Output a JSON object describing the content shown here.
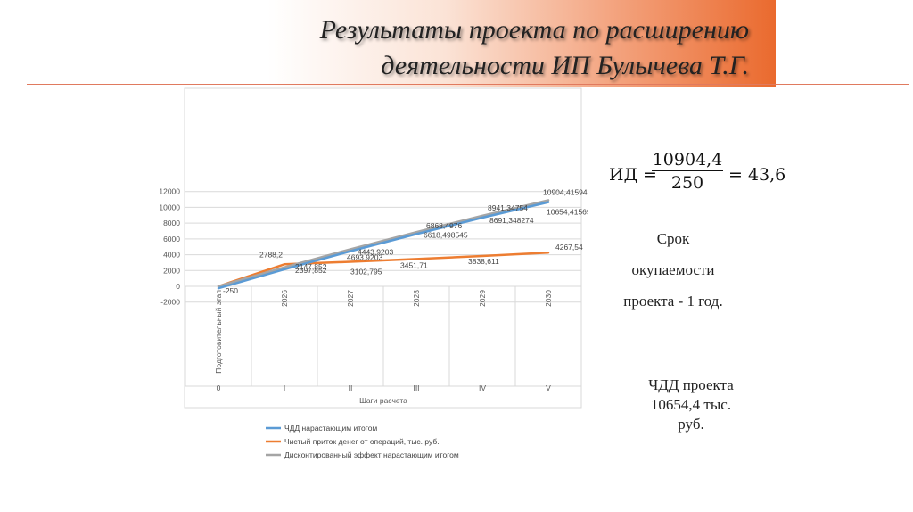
{
  "slide": {
    "title_line1": "Результаты проекта по расширению",
    "title_line2": "деятельности ИП Булычева Т.Г.",
    "accent_color": "#ea6a2e"
  },
  "formula": {
    "lhs": "ИД =",
    "numerator": "10904,4",
    "denominator": "250",
    "rhs": "= 43,6"
  },
  "payback": {
    "line1": "Срок",
    "line2": "окупаемости",
    "line3": "проекта - 1 год."
  },
  "npv": {
    "line1": "ЧДД проекта",
    "line2": "10654,4 тыс.",
    "line3": "руб."
  },
  "chart_data": {
    "type": "line",
    "categories": [
      "Подготовительный этап",
      "2026",
      "2027",
      "2028",
      "2029",
      "2030"
    ],
    "step_labels": [
      "0",
      "I",
      "II",
      "III",
      "IV",
      "V"
    ],
    "xlabel": "Шаги расчета",
    "ylabel": "",
    "ylim": [
      -2000,
      12000
    ],
    "yticks": [
      -2000,
      0,
      2000,
      4000,
      6000,
      8000,
      10000,
      12000
    ],
    "grid": true,
    "legend_position": "bottom",
    "series": [
      {
        "name": "ЧДД нарастающим итогом",
        "color": "#5b9bd5",
        "values": [
          -250,
          2147.852,
          4443.9203,
          6618.498545,
          8691.348274,
          10654.41569
        ],
        "labels": [
          "-250",
          "2147,852",
          "4443,9203",
          "6618,498545",
          "8691,348274",
          "10654,41569"
        ]
      },
      {
        "name": "Чистый приток денег от операций, тыс. руб.",
        "color": "#ed7d31",
        "values": [
          0,
          2788.2,
          3102.795,
          3451.71,
          3838.611,
          4267.54
        ],
        "labels": [
          "0",
          "2788,2",
          "3102,795",
          "3451,71",
          "3838,611",
          "4267,54"
        ]
      },
      {
        "name": "Дисконтированный эффект нарастающим итогом",
        "color": "#a5a5a5",
        "values": [
          0,
          2397.852,
          4693.9203,
          6868.4976,
          8941.34754,
          10904.41594
        ],
        "labels": [
          "0",
          "2397,852",
          "4693,9203",
          "6868,4976",
          "8941,34754",
          "10904,41594"
        ]
      }
    ]
  }
}
